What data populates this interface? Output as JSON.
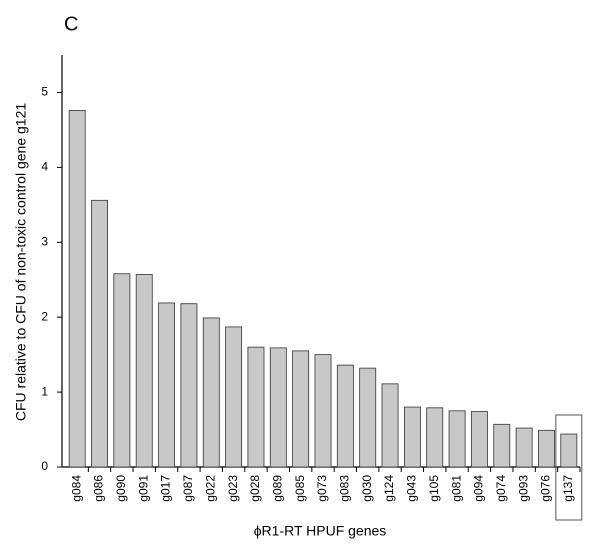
{
  "chart_data": {
    "type": "bar",
    "panel_label": "C",
    "x_label": "ϕR1-RT HPUF genes",
    "y_label": "CFU relative to CFU of non-toxic control gene g121",
    "categories": [
      "g084",
      "g086",
      "g090",
      "g091",
      "g017",
      "g087",
      "g022",
      "g023",
      "g028",
      "g089",
      "g085",
      "g073",
      "g083",
      "g030",
      "g124",
      "g043",
      "g105",
      "g081",
      "g094",
      "g074",
      "g093",
      "g076",
      "g137"
    ],
    "values": [
      4.76,
      3.56,
      2.58,
      2.57,
      2.19,
      2.18,
      1.99,
      1.87,
      1.6,
      1.59,
      1.55,
      1.5,
      1.36,
      1.32,
      1.11,
      0.8,
      0.79,
      0.75,
      0.74,
      0.57,
      0.52,
      0.49,
      0.44
    ],
    "color": "#c8c8c8",
    "ylim": [
      0,
      5.5
    ],
    "yticks": [
      0,
      1,
      2,
      3,
      4,
      5
    ],
    "grid": false
  }
}
